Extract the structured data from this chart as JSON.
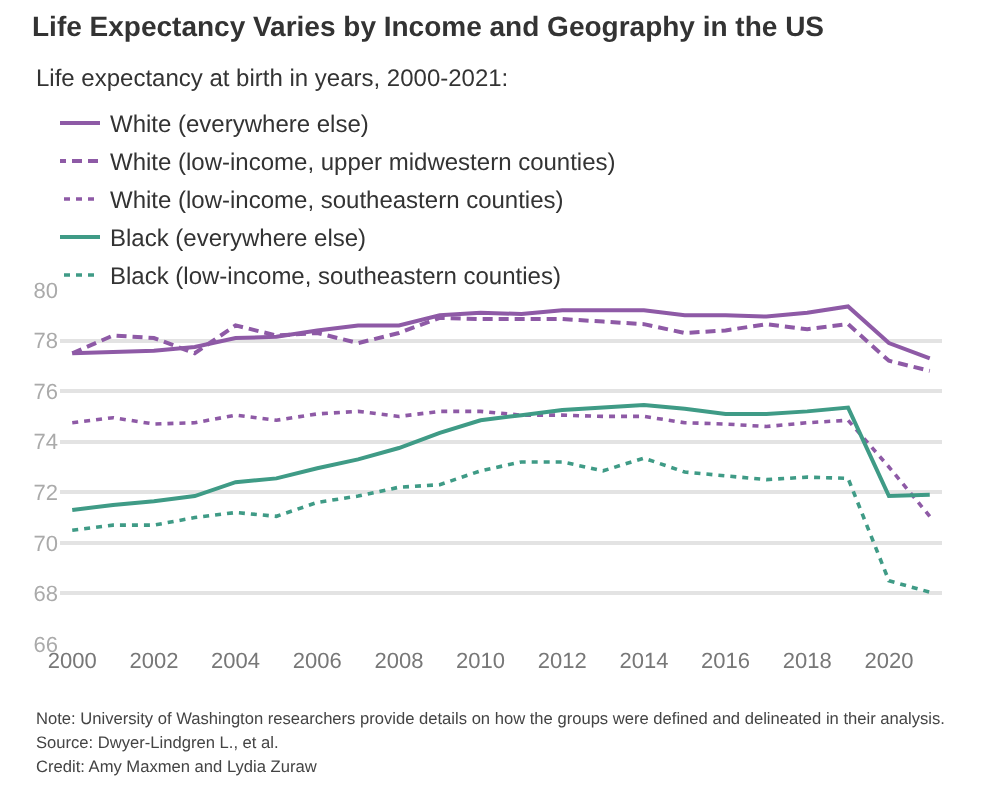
{
  "chart_data": {
    "type": "line",
    "title": "Life Expectancy Varies by Income and Geography in the US",
    "subtitle": "Life expectancy at birth in years, 2000-2021:",
    "x": [
      2000,
      2001,
      2002,
      2003,
      2004,
      2005,
      2006,
      2007,
      2008,
      2009,
      2010,
      2011,
      2012,
      2013,
      2014,
      2015,
      2016,
      2017,
      2018,
      2019,
      2020,
      2021
    ],
    "series": [
      {
        "name": "White (everywhere else)",
        "color": "#8e5aa6",
        "line_style": "solid",
        "values": [
          77.5,
          77.55,
          77.6,
          77.75,
          78.1,
          78.15,
          78.4,
          78.6,
          78.6,
          79.0,
          79.1,
          79.05,
          79.2,
          79.2,
          79.2,
          79.0,
          79.0,
          78.95,
          79.1,
          79.35,
          77.9,
          77.3
        ]
      },
      {
        "name": "White (low-income, upper midwestern counties)",
        "color": "#8e5aa6",
        "line_style": "dashed",
        "values": [
          77.5,
          78.2,
          78.1,
          77.5,
          78.6,
          78.2,
          78.3,
          77.9,
          78.3,
          78.9,
          78.85,
          78.85,
          78.85,
          78.75,
          78.65,
          78.3,
          78.4,
          78.65,
          78.45,
          78.65,
          77.2,
          76.8
        ]
      },
      {
        "name": "White (low-income, southeastern counties)",
        "color": "#8e5aa6",
        "line_style": "dotted",
        "values": [
          74.75,
          74.95,
          74.7,
          74.75,
          75.05,
          74.85,
          75.1,
          75.2,
          75.0,
          75.2,
          75.2,
          75.05,
          75.05,
          75.0,
          75.0,
          74.75,
          74.7,
          74.6,
          74.75,
          74.85,
          73.0,
          71.05
        ]
      },
      {
        "name": "Black (everywhere else)",
        "color": "#3f9b86",
        "line_style": "solid",
        "values": [
          71.3,
          71.5,
          71.65,
          71.85,
          72.4,
          72.55,
          72.95,
          73.3,
          73.75,
          74.35,
          74.85,
          75.05,
          75.25,
          75.35,
          75.45,
          75.3,
          75.1,
          75.1,
          75.2,
          75.35,
          71.85,
          71.9
        ]
      },
      {
        "name": "Black (low-income, southeastern counties)",
        "color": "#3f9b86",
        "line_style": "dotted",
        "values": [
          70.5,
          70.7,
          70.7,
          71.0,
          71.2,
          71.05,
          71.6,
          71.85,
          72.2,
          72.3,
          72.85,
          73.2,
          73.2,
          72.85,
          73.35,
          72.8,
          72.65,
          72.5,
          72.6,
          72.55,
          68.5,
          68.05
        ]
      }
    ],
    "xlim": [
      1999.7,
      2021.3
    ],
    "xticks": [
      2000,
      2002,
      2004,
      2006,
      2008,
      2010,
      2012,
      2014,
      2016,
      2018,
      2020
    ],
    "ylim": [
      66,
      80
    ],
    "yticks": [
      66,
      68,
      70,
      72,
      74,
      76,
      78,
      80
    ],
    "grid": "y",
    "legend": "top left",
    "marker": "none",
    "annotations": [
      "Note: University of Washington researchers provide details on how the groups were defined and delineated in their analysis.",
      "Source: Dwyer-Lindgren L., et al.",
      "Credit: Amy Maxmen and Lydia Zuraw"
    ]
  }
}
